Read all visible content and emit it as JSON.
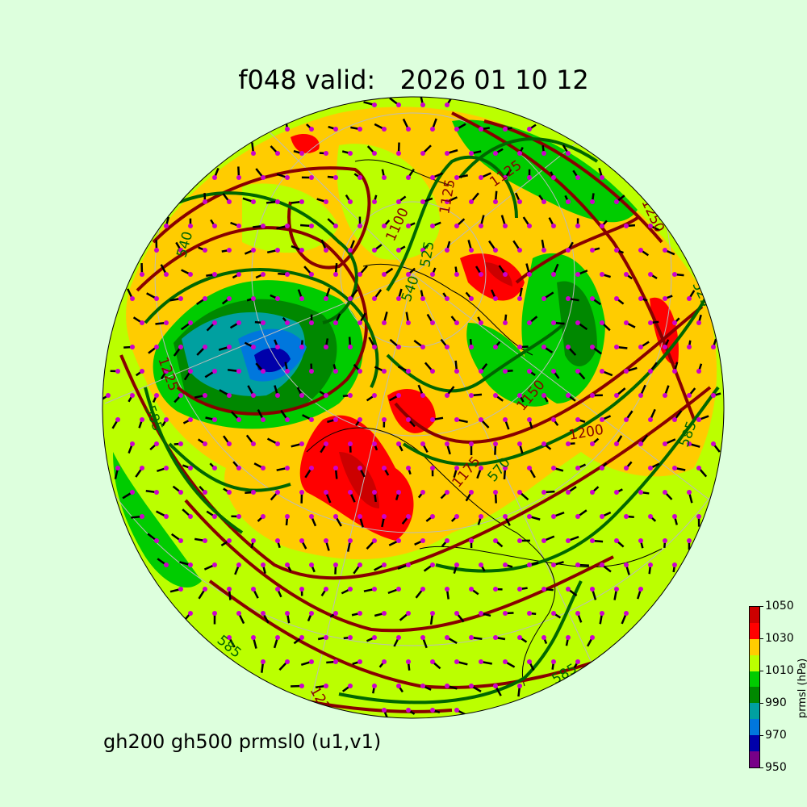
{
  "title": "f048 valid:   2026 01 10 12",
  "subtitle": "gh200 gh500 prmsl0 (u1,v1)",
  "colorbar": {
    "label": "prmsl (hPa)",
    "ticks": [
      "950",
      "970",
      "990",
      "1010",
      "1030",
      "1050"
    ],
    "colors": [
      "#770088",
      "#0000aa",
      "#0077dd",
      "#00a0a0",
      "#008800",
      "#00cc00",
      "#bbff00",
      "#ffcc00",
      "#ff0000",
      "#cc0000"
    ]
  },
  "map": {
    "background": "#bbff00",
    "contour_colors": {
      "gh200": "#880000",
      "gh500": "#006600"
    },
    "wind_dot_color": "#cc00cc",
    "gh200_labels": [
      "1125",
      "1125",
      "1100",
      "1200",
      "1150",
      "1175",
      "1225",
      "1225",
      "1250",
      "1225"
    ],
    "gh500_labels": [
      "525",
      "540",
      "585",
      "570",
      "585",
      "585",
      "585",
      "525",
      "540"
    ]
  }
}
